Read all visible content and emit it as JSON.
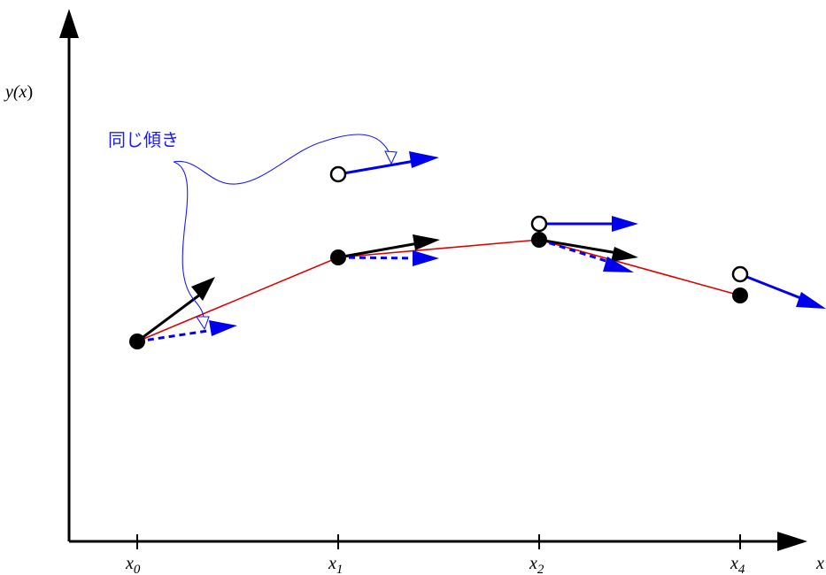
{
  "diagram": {
    "y_axis_label": {
      "base": "y(",
      "var": "x",
      "close": ")"
    },
    "x_axis_label": "x",
    "ticks": [
      {
        "base": "x",
        "sub": "0"
      },
      {
        "base": "x",
        "sub": "1"
      },
      {
        "base": "x",
        "sub": "2"
      },
      {
        "base": "x",
        "sub": "4"
      }
    ],
    "annotation": "同じ傾き",
    "colors": {
      "axis": "#000000",
      "curve": "#e00000",
      "slope_arrow": "#0000ee",
      "true_tangent": "#000000",
      "annotation": "#1a1aff"
    }
  }
}
